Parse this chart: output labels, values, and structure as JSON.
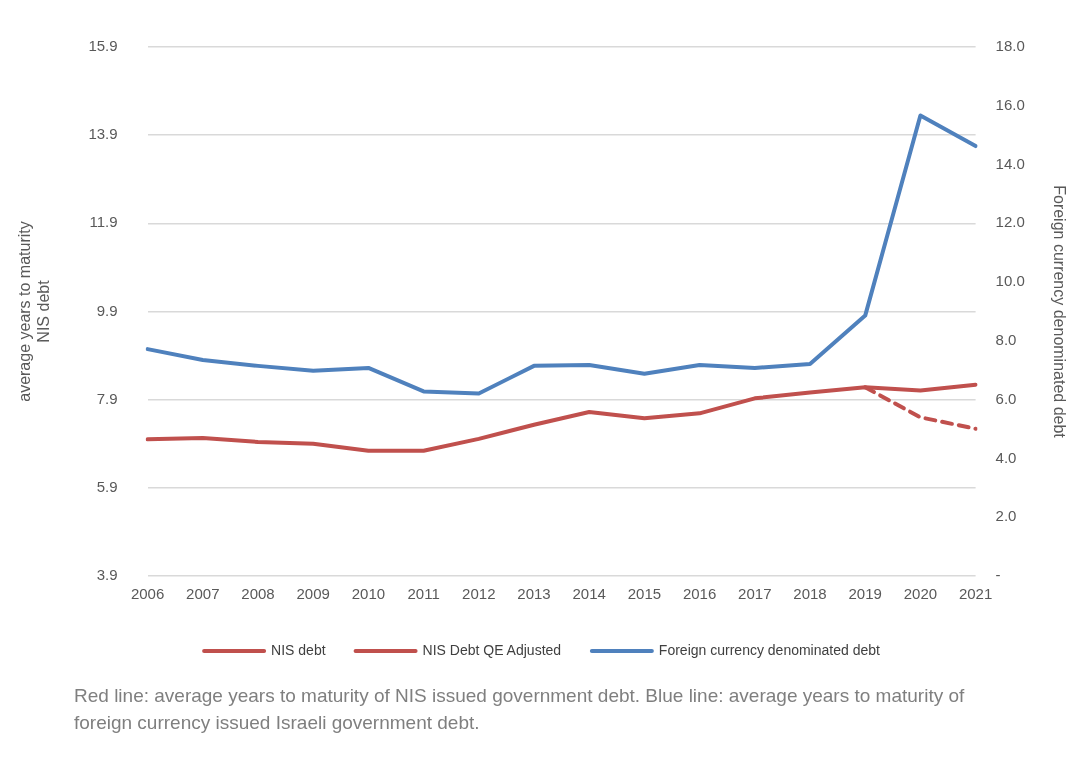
{
  "chart_data": {
    "type": "line",
    "categories": [
      "2006",
      "2007",
      "2008",
      "2009",
      "2010",
      "2011",
      "2012",
      "2013",
      "2014",
      "2015",
      "2016",
      "2017",
      "2018",
      "2019",
      "2020",
      "2021"
    ],
    "ylabel": "average years to maturity\nNIS debt",
    "y2label": "Foreign currency denominated debt",
    "ylim": [
      3.9,
      15.9
    ],
    "yticks": [
      3.9,
      5.9,
      7.9,
      9.9,
      11.9,
      13.9,
      15.9
    ],
    "y2lim": [
      0,
      18
    ],
    "y2ticks": [
      {
        "value": 0,
        "label": "-"
      },
      {
        "value": 2,
        "label": "2.0"
      },
      {
        "value": 4,
        "label": "4.0"
      },
      {
        "value": 6,
        "label": "6.0"
      },
      {
        "value": 8,
        "label": "8.0"
      },
      {
        "value": 10,
        "label": "10.0"
      },
      {
        "value": 12,
        "label": "12.0"
      },
      {
        "value": 14,
        "label": "14.0"
      },
      {
        "value": 16,
        "label": "16.0"
      },
      {
        "value": 18,
        "label": "18.0"
      }
    ],
    "grid": "y",
    "legend": "bottom",
    "marker": "none",
    "series": [
      {
        "name": "NIS debt",
        "color": "#c0504d",
        "line_style": "solid",
        "values": [
          7.0,
          7.03,
          6.94,
          6.9,
          6.74,
          6.74,
          7.01,
          7.33,
          7.62,
          7.48,
          7.59,
          7.93,
          8.06,
          8.18,
          8.11,
          8.24
        ]
      },
      {
        "name": "NIS Debt QE Adjusted",
        "color": "#c0504d",
        "line_style": "dashed",
        "values": [
          null,
          null,
          null,
          null,
          null,
          null,
          null,
          null,
          null,
          null,
          null,
          null,
          null,
          8.18,
          7.5,
          7.24
        ]
      },
      {
        "name": "Foreign currency denominated debt",
        "color": "#4f81bd",
        "line_style": "solid",
        "axis": "y2",
        "values": [
          7.72,
          7.35,
          7.15,
          6.98,
          7.08,
          6.28,
          6.21,
          7.15,
          7.18,
          6.88,
          7.18,
          7.08,
          7.21,
          8.86,
          15.67,
          14.63
        ]
      }
    ],
    "annotations": [
      "Red line: average years to maturity of NIS issued government debt. Blue line: average years to maturity of foreign currency issued Israeli government debt."
    ]
  }
}
